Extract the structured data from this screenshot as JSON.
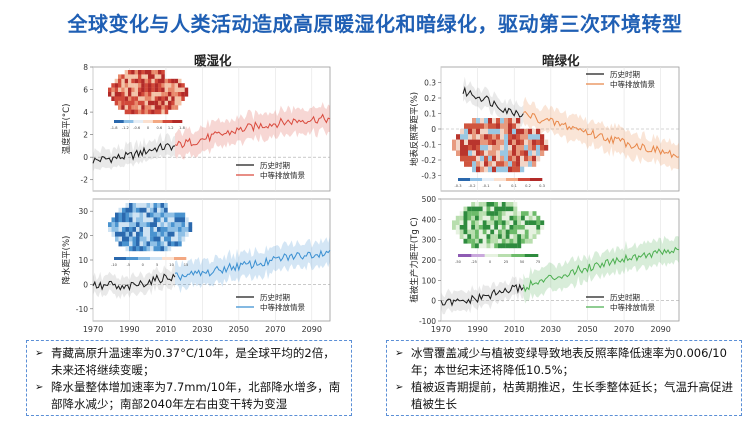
{
  "page_title": "全球变化与人类活动造成高原暖湿化和暗绿化，驱动第三次环境转型",
  "panel_titles": {
    "left": "暖湿化",
    "right": "暗绿化"
  },
  "legend": {
    "historical": "历史时期",
    "scenario": "中等排放情景"
  },
  "colors": {
    "hist": "#1a1a1a",
    "red": "#d94a3d",
    "blue": "#3a8fd1",
    "orange": "#e8884a",
    "green": "#4caf50"
  },
  "notes_left": [
    "青藏高原升温速率为0.37°C/10年，是全球平均的2倍，未来还将继续变暖；",
    "降水量整体增加速率为7.7mm/10年，北部降水增多，南部降水减少；南部2040年左右由变干转为变湿"
  ],
  "notes_right": [
    "冰雪覆盖减少与植被变绿导致地表反照率降低速率为0.006/10年；本世纪末还将降低10.5%；",
    "植被返青期提前，枯黄期推迟，生长季整体延长；气温升高促进植被生长"
  ],
  "chart_data": [
    {
      "id": "temp",
      "type": "line",
      "ylabel": "温度距平(°C)",
      "xlim": [
        1970,
        2100
      ],
      "ylim": [
        -3,
        8
      ],
      "xticks": [
        1970,
        1990,
        2010,
        2030,
        2050,
        2070,
        2090
      ],
      "yticks": [
        -2,
        0,
        2,
        4,
        6,
        8
      ],
      "series": [
        {
          "name": "历史时期",
          "x": [
            1970,
            1975,
            1980,
            1985,
            1990,
            1995,
            2000,
            2005,
            2010,
            2015
          ],
          "values": [
            -0.3,
            -0.2,
            -0.1,
            0.0,
            0.1,
            0.3,
            0.6,
            0.8,
            0.9,
            1.0
          ]
        },
        {
          "name": "中等排放情景",
          "x": [
            2015,
            2025,
            2035,
            2045,
            2055,
            2065,
            2075,
            2085,
            2095,
            2100
          ],
          "values": [
            1.0,
            1.4,
            1.8,
            2.2,
            2.6,
            2.9,
            3.1,
            3.3,
            3.4,
            3.4
          ]
        }
      ],
      "map_colorbar": [
        "-1.8",
        "-1.2",
        "-0.6",
        "0",
        "0.6",
        "1.2",
        "1.8"
      ]
    },
    {
      "id": "precip",
      "type": "line",
      "ylabel": "降水距平(%)",
      "xlim": [
        1970,
        2100
      ],
      "ylim": [
        -15,
        35
      ],
      "xticks": [
        1970,
        1990,
        2010,
        2030,
        2050,
        2070,
        2090
      ],
      "xtick_labels": [
        "1970",
        "1990",
        "2010",
        "2030",
        "2050",
        "2070",
        "2090"
      ],
      "yticks": [
        -10,
        0,
        10,
        20,
        30
      ],
      "series": [
        {
          "name": "历史时期",
          "x": [
            1970,
            1975,
            1980,
            1985,
            1990,
            1995,
            2000,
            2005,
            2010,
            2015
          ],
          "values": [
            0,
            -1,
            0,
            -2,
            -1,
            0,
            1,
            2,
            3,
            3
          ]
        },
        {
          "name": "中等排放情景",
          "x": [
            2015,
            2025,
            2035,
            2045,
            2055,
            2065,
            2075,
            2085,
            2095,
            2100
          ],
          "values": [
            3,
            4,
            5,
            7,
            8,
            9,
            11,
            12,
            13,
            14
          ]
        }
      ],
      "map_colorbar": [
        "-10",
        "-5",
        "0",
        "5",
        "10",
        "15"
      ]
    },
    {
      "id": "albedo",
      "type": "line",
      "ylabel": "地表反照率距平(%)",
      "xlim": [
        1970,
        2100
      ],
      "ylim": [
        -0.4,
        0.4
      ],
      "yticks": [
        -0.3,
        -0.2,
        -0.1,
        0.0,
        0.1,
        0.2,
        0.3
      ],
      "series": [
        {
          "name": "历史时期",
          "x": [
            1982,
            1986,
            1990,
            1994,
            1998,
            2002,
            2006,
            2010,
            2015
          ],
          "values": [
            0.24,
            0.23,
            0.21,
            0.2,
            0.17,
            0.15,
            0.12,
            0.11,
            0.1
          ]
        },
        {
          "name": "中等排放情景",
          "x": [
            2015,
            2025,
            2035,
            2045,
            2055,
            2065,
            2075,
            2085,
            2095,
            2100
          ],
          "values": [
            0.1,
            0.06,
            0.03,
            0.0,
            -0.04,
            -0.07,
            -0.1,
            -0.13,
            -0.16,
            -0.18
          ]
        }
      ],
      "map_colorbar": [
        "-0.3",
        "-0.2",
        "-0.1",
        "0",
        "0.1",
        "0.2",
        "0.3"
      ]
    },
    {
      "id": "npp",
      "type": "line",
      "ylabel": "植被生产力距平(Tg C)",
      "xlim": [
        1970,
        2100
      ],
      "ylim": [
        -100,
        500
      ],
      "xticks": [
        1970,
        1990,
        2010,
        2030,
        2050,
        2070,
        2090
      ],
      "xtick_labels": [
        "1970",
        "1990",
        "2010",
        "2030",
        "2050",
        "2070",
        "2090"
      ],
      "yticks": [
        -100,
        0,
        100,
        200,
        300,
        400,
        500
      ],
      "series": [
        {
          "name": "历史时期",
          "x": [
            1970,
            1975,
            1980,
            1985,
            1990,
            1995,
            2000,
            2005,
            2010,
            2015
          ],
          "values": [
            -15,
            -10,
            -8,
            0,
            10,
            22,
            35,
            48,
            58,
            65
          ]
        },
        {
          "name": "中等排放情景",
          "x": [
            2015,
            2025,
            2035,
            2045,
            2055,
            2065,
            2075,
            2085,
            2095,
            2100
          ],
          "values": [
            65,
            95,
            125,
            150,
            175,
            200,
            215,
            230,
            245,
            250
          ]
        }
      ],
      "map_colorbar": [
        "-50",
        "-25",
        "0",
        "25",
        "50",
        "75"
      ]
    }
  ]
}
